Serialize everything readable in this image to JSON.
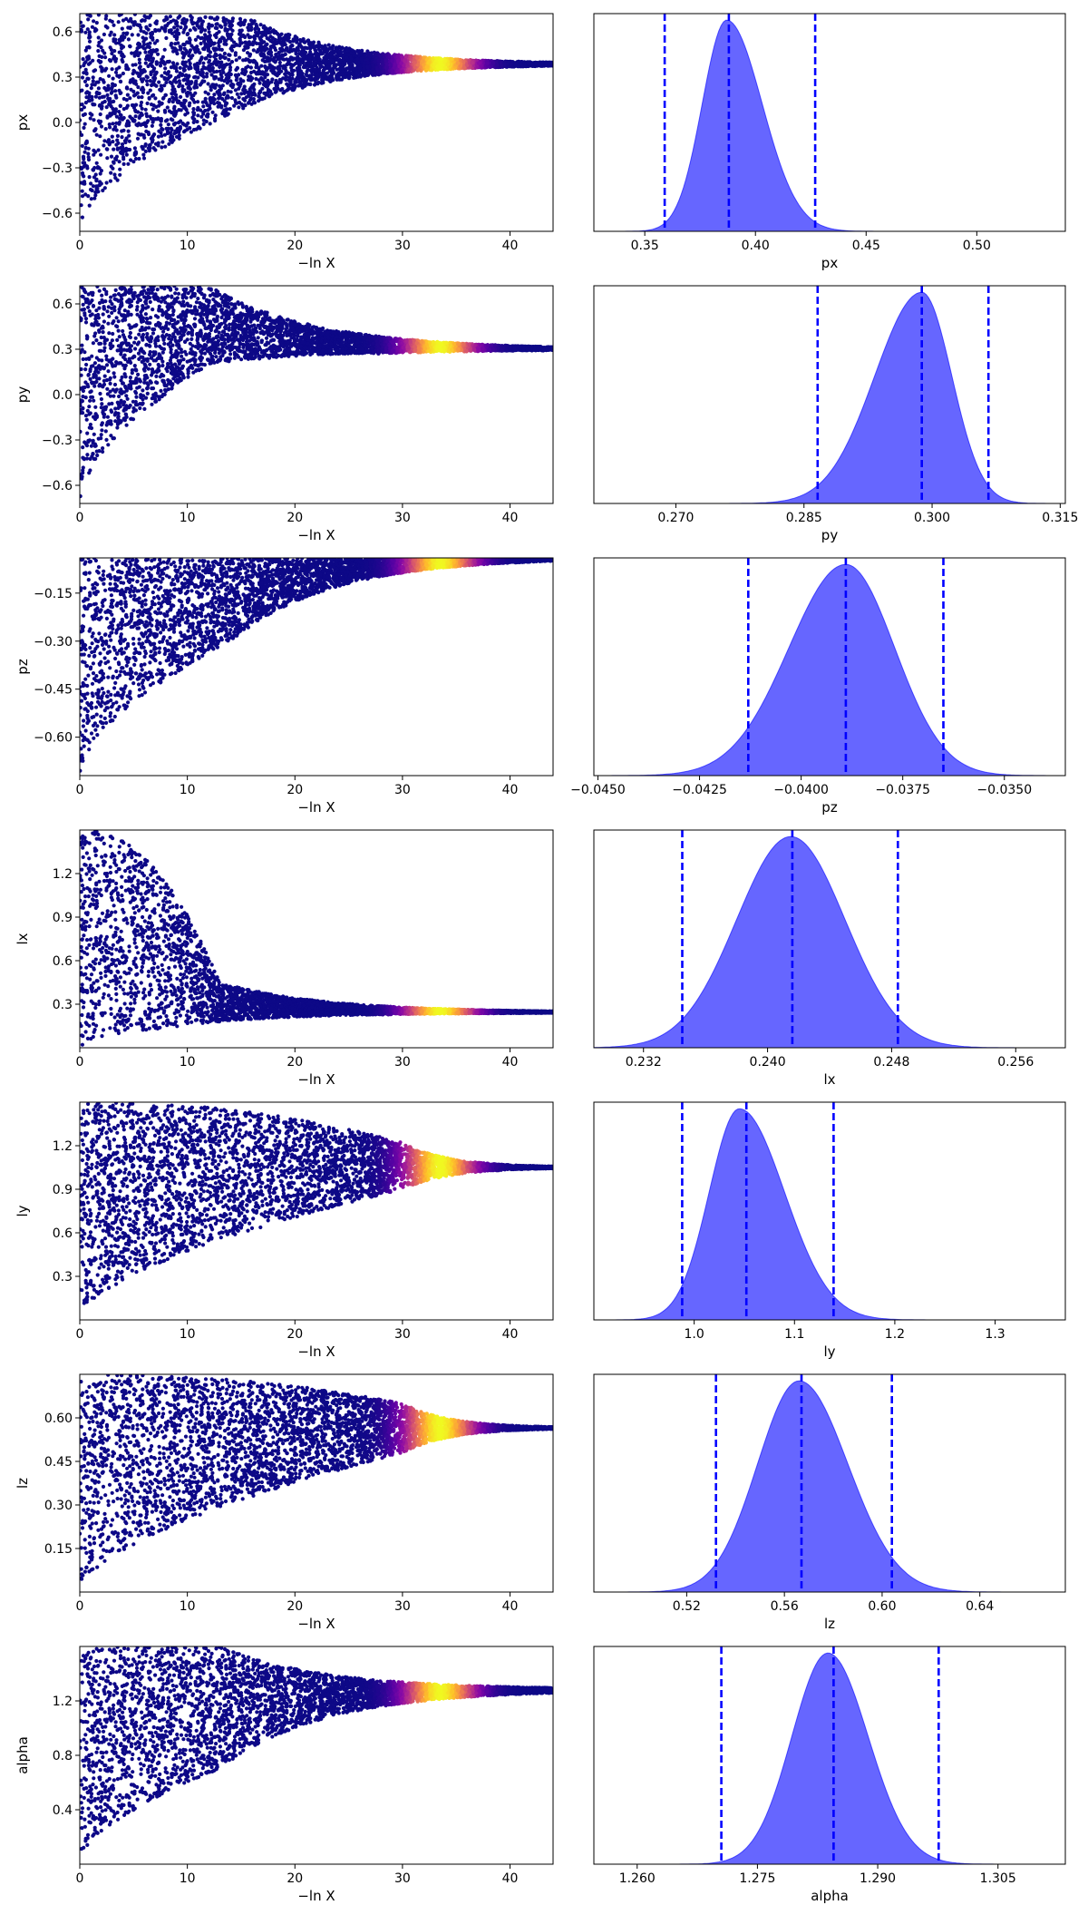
{
  "chart_data": [
    {
      "type": "scatter",
      "param": "px",
      "xlabel": "−ln X",
      "ylabel": "px",
      "xlim": [
        0,
        44
      ],
      "ylim": [
        -0.72,
        0.72
      ],
      "xticks": [
        0,
        10,
        20,
        30,
        40
      ],
      "yticks": [
        -0.6,
        -0.3,
        0.0,
        0.3,
        0.6
      ],
      "ytick_labels": [
        "−0.6",
        "−0.3",
        "0.0",
        "0.3",
        "0.6"
      ],
      "trace": {
        "center": 0.385,
        "start_lo": -0.72,
        "start_hi": 0.72,
        "knee": 16,
        "knee_lo": 0.12,
        "knee_hi": 0.68,
        "peak_x": 33.5
      },
      "colormap": "plasma"
    },
    {
      "type": "area",
      "param": "px",
      "xlabel": "px",
      "xlim": [
        0.327,
        0.54
      ],
      "xticks": [
        0.35,
        0.4,
        0.45,
        0.5
      ],
      "xtick_labels": [
        "0.35",
        "0.40",
        "0.45",
        "0.50"
      ],
      "peak": 0.387,
      "sigma_left": 0.011,
      "sigma_right": 0.016,
      "quantile_lines": [
        0.359,
        0.388,
        0.427
      ],
      "fill_color": "#6666ff",
      "line_color": "#0000ff"
    },
    {
      "type": "scatter",
      "param": "py",
      "xlabel": "−ln X",
      "ylabel": "py",
      "xlim": [
        0,
        44
      ],
      "ylim": [
        -0.72,
        0.72
      ],
      "xticks": [
        0,
        10,
        20,
        30,
        40
      ],
      "yticks": [
        -0.6,
        -0.3,
        0.0,
        0.3,
        0.6
      ],
      "ytick_labels": [
        "−0.6",
        "−0.3",
        "0.0",
        "0.3",
        "0.6"
      ],
      "trace": {
        "center": 0.298,
        "start_lo": -0.72,
        "start_hi": 0.72,
        "knee": 12,
        "knee_lo": 0.2,
        "knee_hi": 0.72,
        "peak_x": 33.5
      },
      "colormap": "plasma"
    },
    {
      "type": "area",
      "param": "py",
      "xlabel": "py",
      "xlim": [
        0.2604,
        0.3156
      ],
      "xticks": [
        0.27,
        0.285,
        0.3,
        0.315
      ],
      "xtick_labels": [
        "0.270",
        "0.285",
        "0.300",
        "0.315"
      ],
      "peak": 0.2988,
      "sigma_left": 0.0055,
      "sigma_right": 0.0035,
      "quantile_lines": [
        0.2866,
        0.2988,
        0.3066
      ],
      "fill_color": "#6666ff",
      "line_color": "#0000ff"
    },
    {
      "type": "scatter",
      "param": "pz",
      "xlabel": "−ln X",
      "ylabel": "pz",
      "xlim": [
        0,
        44
      ],
      "ylim": [
        -0.72,
        -0.04
      ],
      "xticks": [
        0,
        10,
        20,
        30,
        40
      ],
      "yticks": [
        -0.6,
        -0.45,
        -0.3,
        -0.15
      ],
      "ytick_labels": [
        "−0.60",
        "−0.45",
        "−0.30",
        "−0.15"
      ],
      "trace": {
        "center": -0.039,
        "start_lo": -0.72,
        "start_hi": -0.04,
        "knee": 14,
        "knee_lo": -0.3,
        "knee_hi": -0.04,
        "peak_x": 33.5
      },
      "colormap": "plasma"
    },
    {
      "type": "area",
      "param": "pz",
      "xlabel": "pz",
      "xlim": [
        -0.0451,
        -0.0335
      ],
      "xticks": [
        -0.045,
        -0.0425,
        -0.04,
        -0.0375,
        -0.035
      ],
      "xtick_labels": [
        "−0.0450",
        "−0.0425",
        "−0.0400",
        "−0.0375",
        "−0.0350"
      ],
      "peak": -0.0389,
      "sigma_left": 0.0014,
      "sigma_right": 0.0012,
      "quantile_lines": [
        -0.0413,
        -0.0389,
        -0.0365
      ],
      "fill_color": "#6666ff",
      "line_color": "#0000ff"
    },
    {
      "type": "scatter",
      "param": "lx",
      "xlabel": "−ln X",
      "ylabel": "lx",
      "xlim": [
        0,
        44
      ],
      "ylim": [
        0.0,
        1.5
      ],
      "xticks": [
        0,
        10,
        20,
        30,
        40
      ],
      "yticks": [
        0.3,
        0.6,
        0.9,
        1.2
      ],
      "ytick_labels": [
        "0.3",
        "0.6",
        "0.9",
        "1.2"
      ],
      "trace": {
        "center": 0.243,
        "start_lo": 0.0,
        "start_hi": 1.5,
        "knee": 13,
        "knee_lo": 0.18,
        "knee_hi": 0.45,
        "peak_x": 33.5
      },
      "colormap": "plasma"
    },
    {
      "type": "area",
      "param": "lx",
      "xlabel": "lx",
      "xlim": [
        0.2288,
        0.2592
      ],
      "xticks": [
        0.232,
        0.24,
        0.248,
        0.256
      ],
      "xtick_labels": [
        "0.232",
        "0.240",
        "0.248",
        "0.256"
      ],
      "peak": 0.2415,
      "sigma_left": 0.0035,
      "sigma_right": 0.0035,
      "quantile_lines": [
        0.2345,
        0.2416,
        0.2484
      ],
      "fill_color": "#6666ff",
      "line_color": "#0000ff"
    },
    {
      "type": "scatter",
      "param": "ly",
      "xlabel": "−ln X",
      "ylabel": "ly",
      "xlim": [
        0,
        44
      ],
      "ylim": [
        0.0,
        1.5
      ],
      "xticks": [
        0,
        10,
        20,
        30,
        40
      ],
      "yticks": [
        0.3,
        0.6,
        0.9,
        1.2
      ],
      "ytick_labels": [
        "0.3",
        "0.6",
        "0.9",
        "1.2"
      ],
      "trace": {
        "center": 1.05,
        "start_lo": 0.0,
        "start_hi": 1.5,
        "knee": 30,
        "knee_lo": 0.9,
        "knee_hi": 1.22,
        "peak_x": 33.5
      },
      "colormap": "plasma"
    },
    {
      "type": "area",
      "param": "ly",
      "xlabel": "ly",
      "xlim": [
        0.9,
        1.37
      ],
      "xticks": [
        1.0,
        1.1,
        1.2,
        1.3
      ],
      "xtick_labels": [
        "1.0",
        "1.1",
        "1.2",
        "1.3"
      ],
      "peak": 1.045,
      "sigma_left": 0.03,
      "sigma_right": 0.045,
      "quantile_lines": [
        0.988,
        1.052,
        1.139
      ],
      "fill_color": "#6666ff",
      "line_color": "#0000ff"
    },
    {
      "type": "scatter",
      "param": "lz",
      "xlabel": "−ln X",
      "ylabel": "lz",
      "xlim": [
        0,
        44
      ],
      "ylim": [
        0.0,
        0.75
      ],
      "xticks": [
        0,
        10,
        20,
        30,
        40
      ],
      "yticks": [
        0.15,
        0.3,
        0.45,
        0.6
      ],
      "ytick_labels": [
        "0.15",
        "0.30",
        "0.45",
        "0.60"
      ],
      "trace": {
        "center": 0.565,
        "start_lo": 0.0,
        "start_hi": 0.75,
        "knee": 30,
        "knee_lo": 0.48,
        "knee_hi": 0.65,
        "peak_x": 33.5
      },
      "colormap": "plasma"
    },
    {
      "type": "area",
      "param": "lz",
      "xlabel": "lz",
      "xlim": [
        0.482,
        0.675
      ],
      "xticks": [
        0.52,
        0.56,
        0.6,
        0.64
      ],
      "xtick_labels": [
        "0.52",
        "0.56",
        "0.60",
        "0.64"
      ],
      "peak": 0.566,
      "sigma_left": 0.017,
      "sigma_right": 0.02,
      "quantile_lines": [
        0.532,
        0.567,
        0.604
      ],
      "fill_color": "#6666ff",
      "line_color": "#0000ff"
    },
    {
      "type": "scatter",
      "param": "alpha",
      "xlabel": "−ln X",
      "ylabel": "alpha",
      "xlim": [
        0,
        44
      ],
      "ylim": [
        0.0,
        1.6
      ],
      "xticks": [
        0,
        10,
        20,
        30,
        40
      ],
      "yticks": [
        0.4,
        0.8,
        1.2
      ],
      "ytick_labels": [
        "0.4",
        "0.8",
        "1.2"
      ],
      "trace": {
        "center": 1.283,
        "start_lo": 0.0,
        "start_hi": 1.6,
        "knee": 13,
        "knee_lo": 0.7,
        "knee_hi": 1.6,
        "peak_x": 33.5
      },
      "colormap": "plasma"
    },
    {
      "type": "area",
      "param": "alpha",
      "xlabel": "alpha",
      "xlim": [
        1.2546,
        1.3134
      ],
      "xticks": [
        1.26,
        1.275,
        1.29,
        1.305
      ],
      "xtick_labels": [
        "1.260",
        "1.275",
        "1.290",
        "1.305"
      ],
      "peak": 1.2838,
      "sigma_left": 0.0045,
      "sigma_right": 0.005,
      "quantile_lines": [
        1.2705,
        1.2845,
        1.2976
      ],
      "fill_color": "#6666ff",
      "line_color": "#0000ff"
    }
  ]
}
